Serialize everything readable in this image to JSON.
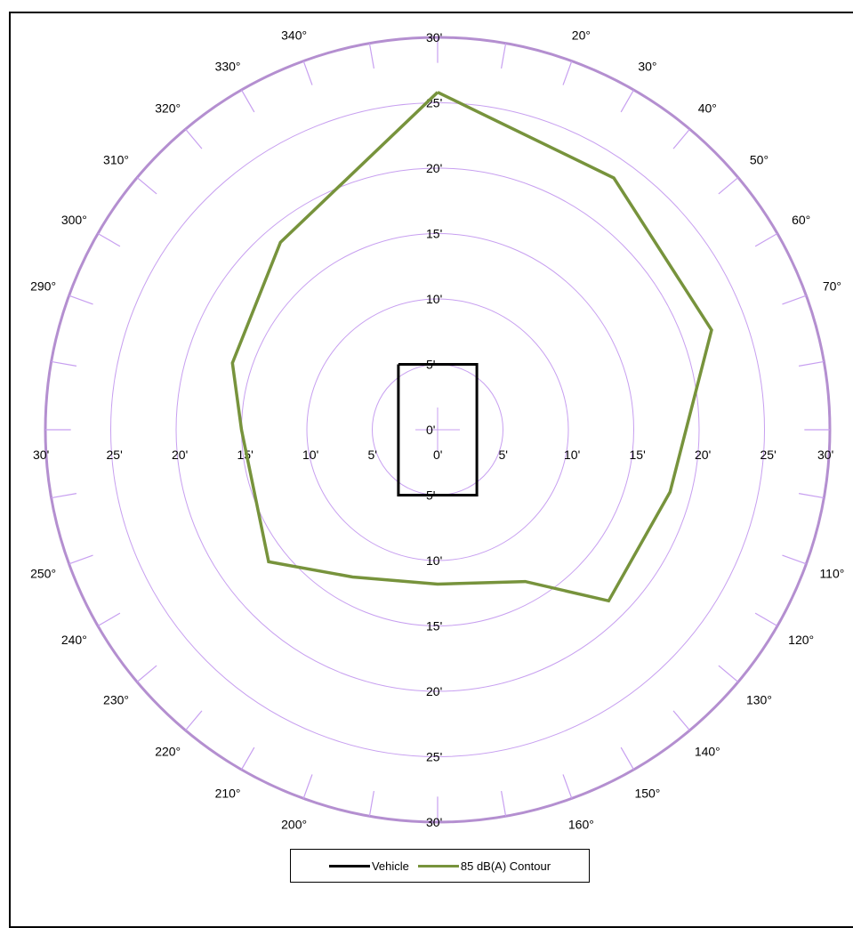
{
  "chart_data": {
    "type": "polar-line",
    "rmax": 30,
    "ring_values": [
      5,
      10,
      15,
      20,
      25,
      30
    ],
    "radial_tick_labels": [
      "0'",
      "5'",
      "10'",
      "15'",
      "20'",
      "25'",
      "30'"
    ],
    "horizontal_tick_labels": [
      "30'",
      "25'",
      "20'",
      "15'",
      "10'",
      "5'",
      "0'",
      "5'",
      "10'",
      "15'",
      "20'",
      "25'",
      "30'"
    ],
    "angle_labels": [
      {
        "angle": 20,
        "label": "20°"
      },
      {
        "angle": 30,
        "label": "30°"
      },
      {
        "angle": 40,
        "label": "40°"
      },
      {
        "angle": 50,
        "label": "50°"
      },
      {
        "angle": 60,
        "label": "60°"
      },
      {
        "angle": 70,
        "label": "70°"
      },
      {
        "angle": 110,
        "label": "110°"
      },
      {
        "angle": 120,
        "label": "120°"
      },
      {
        "angle": 130,
        "label": "130°"
      },
      {
        "angle": 140,
        "label": "140°"
      },
      {
        "angle": 150,
        "label": "150°"
      },
      {
        "angle": 160,
        "label": "160°"
      },
      {
        "angle": 200,
        "label": "200°"
      },
      {
        "angle": 210,
        "label": "210°"
      },
      {
        "angle": 220,
        "label": "220°"
      },
      {
        "angle": 230,
        "label": "230°"
      },
      {
        "angle": 240,
        "label": "240°"
      },
      {
        "angle": 250,
        "label": "250°"
      },
      {
        "angle": 290,
        "label": "290°"
      },
      {
        "angle": 300,
        "label": "300°"
      },
      {
        "angle": 310,
        "label": "310°"
      },
      {
        "angle": 320,
        "label": "320°"
      },
      {
        "angle": 330,
        "label": "330°"
      },
      {
        "angle": 340,
        "label": "340°"
      }
    ],
    "series": [
      {
        "name": "Vehicle",
        "color": "#000000",
        "points_xy": [
          [
            -3,
            5
          ],
          [
            3,
            5
          ],
          [
            3,
            -5
          ],
          [
            -3,
            -5
          ],
          [
            -3,
            5
          ]
        ]
      },
      {
        "name": "85 dB(A) Contour",
        "color": "#77933c",
        "points_polar": [
          {
            "angle": 0,
            "r": 25.8
          },
          {
            "angle": 35,
            "r": 23.5
          },
          {
            "angle": 70,
            "r": 22.3
          },
          {
            "angle": 105,
            "r": 18.4
          },
          {
            "angle": 135,
            "r": 18.5
          },
          {
            "angle": 150,
            "r": 13.4
          },
          {
            "angle": 180,
            "r": 11.8
          },
          {
            "angle": 210,
            "r": 13.0
          },
          {
            "angle": 232,
            "r": 16.4
          },
          {
            "angle": 270,
            "r": 15.0
          },
          {
            "angle": 288,
            "r": 16.5
          },
          {
            "angle": 320,
            "r": 18.7
          },
          {
            "angle": 360,
            "r": 25.8
          }
        ]
      }
    ]
  },
  "legend": {
    "vehicle_label": "Vehicle",
    "contour_label": "85 dB(A) Contour"
  }
}
